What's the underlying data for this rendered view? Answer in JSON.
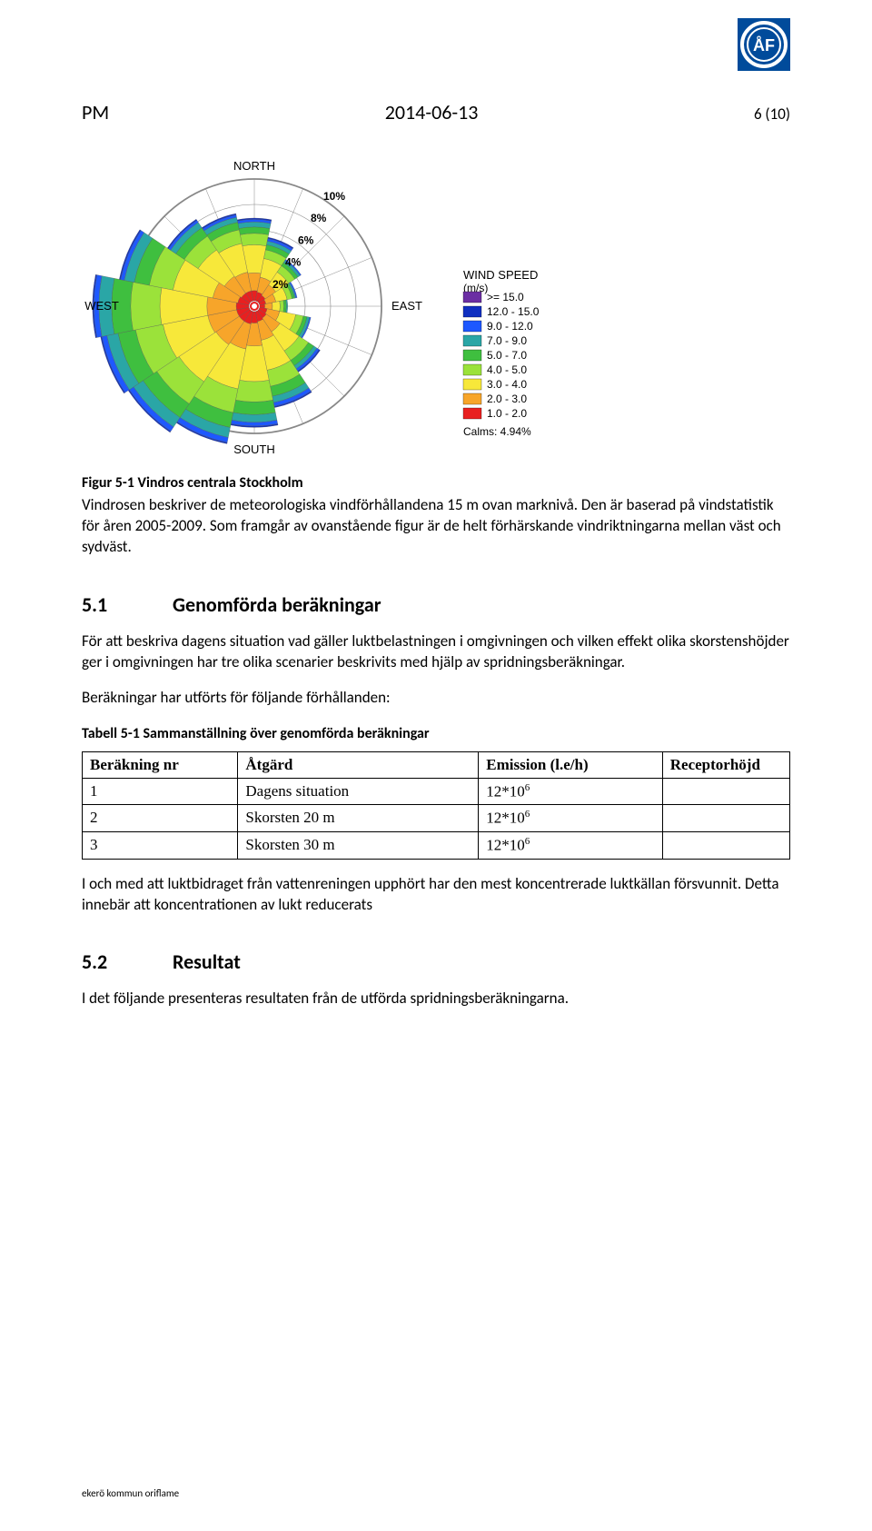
{
  "logo": {
    "bg_color": "#004b9b",
    "ring_color": "#ffffff",
    "letter": "ÅF"
  },
  "header": {
    "pm": "PM",
    "date": "2014-06-13",
    "page": "6 (10)"
  },
  "windrose": {
    "labels": {
      "north": "NORTH",
      "south": "SOUTH",
      "east": "EAST",
      "west": "WEST"
    },
    "ring_pct_labels": [
      "2%",
      "4%",
      "6%",
      "8%",
      "10%"
    ],
    "legend_title": "WIND SPEED",
    "legend_unit": "(m/s)",
    "legend_items": [
      {
        "color": "#6b2fa3",
        "label": ">= 15.0"
      },
      {
        "color": "#1030c0",
        "label": "12.0 - 15.0"
      },
      {
        "color": "#1e58ff",
        "label": "9.0 - 12.0"
      },
      {
        "color": "#2aa6a6",
        "label": "7.0 - 9.0"
      },
      {
        "color": "#3fbf3f",
        "label": "5.0 - 7.0"
      },
      {
        "color": "#9be23a",
        "label": "4.0 - 5.0"
      },
      {
        "color": "#f7e83a",
        "label": "3.0 - 4.0"
      },
      {
        "color": "#f7a52a",
        "label": "2.0 - 3.0"
      },
      {
        "color": "#e82020",
        "label": "1.0 - 2.0"
      }
    ],
    "calms_label": "Calms: 4.94%",
    "sectors": [
      {
        "angle": 0,
        "bins": [
          0.8,
          1.4,
          2.2,
          0.9,
          0.5,
          0.4,
          0.2,
          0.1,
          0.0
        ]
      },
      {
        "angle": 22.5,
        "bins": [
          0.7,
          1.2,
          1.5,
          0.7,
          0.4,
          0.3,
          0.2,
          0.1,
          0.0
        ]
      },
      {
        "angle": 45,
        "bins": [
          0.6,
          1.0,
          1.2,
          0.6,
          0.3,
          0.2,
          0.1,
          0.0,
          0.0
        ]
      },
      {
        "angle": 67.5,
        "bins": [
          0.5,
          0.8,
          0.9,
          0.4,
          0.2,
          0.1,
          0.1,
          0.0,
          0.0
        ]
      },
      {
        "angle": 90,
        "bins": [
          0.4,
          0.6,
          0.6,
          0.3,
          0.2,
          0.1,
          0.0,
          0.0,
          0.0
        ]
      },
      {
        "angle": 112.5,
        "bins": [
          0.6,
          1.0,
          1.3,
          0.6,
          0.3,
          0.2,
          0.1,
          0.0,
          0.0
        ]
      },
      {
        "angle": 135,
        "bins": [
          0.7,
          1.3,
          1.8,
          0.9,
          0.5,
          0.3,
          0.2,
          0.1,
          0.0
        ]
      },
      {
        "angle": 157.5,
        "bins": [
          0.8,
          1.5,
          2.4,
          1.3,
          0.8,
          0.5,
          0.3,
          0.1,
          0.0
        ]
      },
      {
        "angle": 180,
        "bins": [
          0.9,
          1.8,
          2.8,
          1.6,
          1.0,
          0.6,
          0.3,
          0.1,
          0.0
        ]
      },
      {
        "angle": 202.5,
        "bins": [
          1.0,
          2.0,
          3.2,
          1.9,
          1.2,
          0.8,
          0.4,
          0.1,
          0.0
        ]
      },
      {
        "angle": 225,
        "bins": [
          1.0,
          2.2,
          3.5,
          2.1,
          1.3,
          0.9,
          0.4,
          0.1,
          0.0
        ]
      },
      {
        "angle": 247.5,
        "bins": [
          1.0,
          2.3,
          3.6,
          2.2,
          1.4,
          0.9,
          0.4,
          0.1,
          0.0
        ]
      },
      {
        "angle": 270,
        "bins": [
          1.0,
          2.3,
          3.7,
          2.3,
          1.5,
          1.0,
          0.4,
          0.1,
          0.0
        ]
      },
      {
        "angle": 292.5,
        "bins": [
          0.9,
          2.0,
          3.2,
          1.9,
          1.2,
          0.8,
          0.3,
          0.1,
          0.0
        ]
      },
      {
        "angle": 315,
        "bins": [
          0.8,
          1.6,
          2.5,
          1.3,
          0.8,
          0.5,
          0.2,
          0.1,
          0.0
        ]
      },
      {
        "angle": 337.5,
        "bins": [
          0.8,
          1.5,
          2.3,
          1.1,
          0.6,
          0.4,
          0.2,
          0.1,
          0.0
        ]
      }
    ],
    "bin_colors": [
      "#e82020",
      "#f7a52a",
      "#f7e83a",
      "#9be23a",
      "#3fbf3f",
      "#2aa6a6",
      "#1e58ff",
      "#1030c0",
      "#6b2fa3"
    ],
    "ring_max_pct": 10,
    "ring_step_pct": 2
  },
  "figure_caption": "Figur 5-1 Vindros centrala Stockholm",
  "figure_para": "Vindrosen beskriver de meteorologiska vindförhållandena 15 m ovan marknivå. Den är baserad på vindstatistik för åren 2005-2009. Som framgår av ovanstående figur är de helt förhärskande vindriktningarna mellan väst och sydväst.",
  "sec_51": {
    "num": "5.1",
    "title": "Genomförda beräkningar"
  },
  "sec_51_para": "För att beskriva dagens situation vad gäller luktbelastningen i omgivningen och vilken effekt olika skorstenshöjder ger i omgivningen har tre olika scenarier beskrivits med hjälp av spridningsberäkningar.",
  "sec_51_para2": "Beräkningar har utförts för följande förhållanden:",
  "table_title": "Tabell 5-1 Sammanställning över genomförda beräkningar",
  "table": {
    "headers": [
      "Beräkning nr",
      "Åtgärd",
      "Emission (l.e/h)",
      "Receptorhöjd"
    ],
    "rows": [
      {
        "nr": "1",
        "atgard": "Dagens situation",
        "emission_base": "12*10",
        "emission_exp": "6",
        "recept": ""
      },
      {
        "nr": "2",
        "atgard": "Skorsten 20 m",
        "emission_base": "12*10",
        "emission_exp": "6",
        "recept": ""
      },
      {
        "nr": "3",
        "atgard": "Skorsten 30 m",
        "emission_base": "12*10",
        "emission_exp": "6",
        "recept": ""
      }
    ],
    "col_widths": [
      "22%",
      "34%",
      "26%",
      "18%"
    ]
  },
  "post_table_para": "I och med att luktbidraget från vattenreningen upphört har den mest koncentrerade luktkällan försvunnit. Detta innebär att koncentrationen av lukt reducerats",
  "sec_52": {
    "num": "5.2",
    "title": "Resultat"
  },
  "sec_52_para": "I det följande presenteras resultaten från de utförda spridningsberäkningarna.",
  "footer": "ekerö kommun oriflame"
}
